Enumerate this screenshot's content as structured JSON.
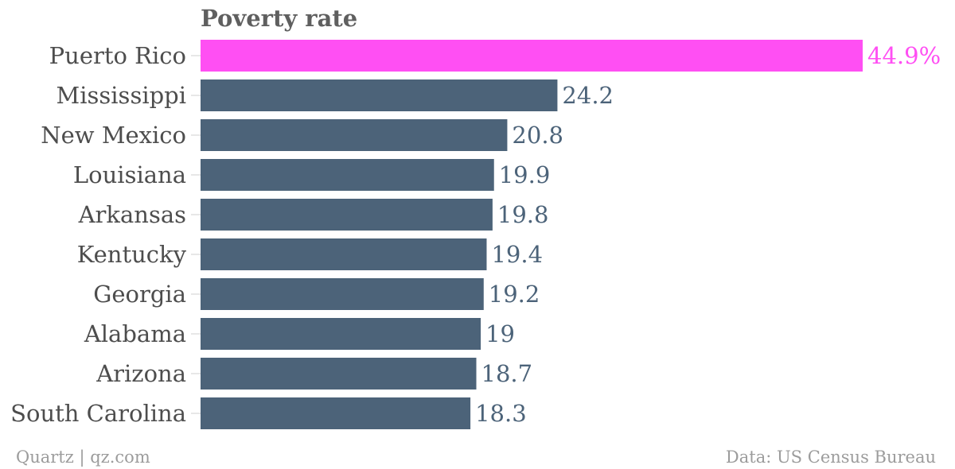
{
  "chart_data": {
    "type": "bar",
    "orientation": "horizontal",
    "title": "Poverty rate",
    "categories": [
      "Puerto Rico",
      "Mississippi",
      "New Mexico",
      "Louisiana",
      "Arkansas",
      "Kentucky",
      "Georgia",
      "Alabama",
      "Arizona",
      "South Carolina"
    ],
    "values": [
      44.9,
      24.2,
      20.8,
      19.9,
      19.8,
      19.4,
      19.2,
      19,
      18.7,
      18.3
    ],
    "value_labels": [
      "44.9%",
      "24.2",
      "20.8",
      "19.9",
      "19.8",
      "19.4",
      "19.2",
      "19",
      "18.7",
      "18.3"
    ],
    "highlight_index": 0,
    "xlim": [
      0,
      44.9
    ],
    "grid": false,
    "colors": {
      "default_bar": "#4c6379",
      "highlight_bar": "#ff4ff3"
    }
  },
  "footer": {
    "source_left": "Quartz | qz.com",
    "source_right": "Data: US Census Bureau"
  }
}
